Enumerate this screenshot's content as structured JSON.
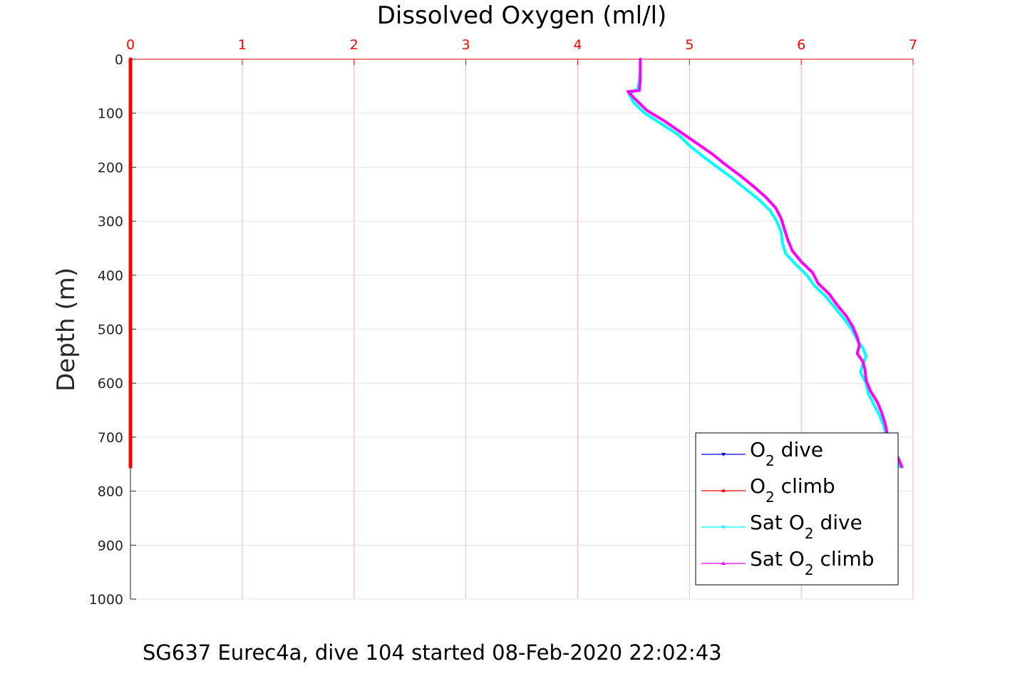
{
  "chart_data": {
    "type": "line",
    "xlabel": "Dissolved Oxygen (ml/l)",
    "ylabel": "Depth (m)",
    "xlim": [
      0,
      7
    ],
    "ylim": [
      0,
      1000
    ],
    "y_reversed": true,
    "x_axis_location": "top",
    "x_ticks": [
      "0",
      "1",
      "2",
      "3",
      "4",
      "5",
      "6",
      "7"
    ],
    "y_ticks": [
      "0",
      "100",
      "200",
      "300",
      "400",
      "500",
      "600",
      "700",
      "800",
      "900",
      "1000"
    ],
    "grid": true,
    "legend_position": "bottom-right",
    "colors": {
      "axis_x": "#ff0000",
      "axis_y": "#262626",
      "grid": "#f4a0b8",
      "o2_dive": "#0000ff",
      "o2_climb": "#ff0000",
      "sat_dive": "#00ffff",
      "sat_climb": "#ff00ff"
    },
    "legend": [
      {
        "pre": "O",
        "sub": "2",
        "post": " dive",
        "series": "o2_dive"
      },
      {
        "pre": "O",
        "sub": "2",
        "post": " climb",
        "series": "o2_climb"
      },
      {
        "pre": "Sat O",
        "sub": "2",
        "post": " dive",
        "series": "sat_dive"
      },
      {
        "pre": "Sat O",
        "sub": "2",
        "post": " climb",
        "series": "sat_climb"
      }
    ],
    "series": [
      {
        "key": "o2_dive",
        "x": [
          0,
          0
        ],
        "y": [
          0,
          755
        ]
      },
      {
        "key": "o2_climb",
        "x": [
          0,
          0
        ],
        "y": [
          0,
          755
        ]
      },
      {
        "key": "sat_dive",
        "x": [
          4.56,
          4.56,
          4.55,
          4.54,
          4.46,
          4.5,
          4.6,
          4.75,
          4.9,
          5.0,
          5.12,
          5.25,
          5.38,
          5.5,
          5.62,
          5.72,
          5.78,
          5.82,
          5.83,
          5.86,
          5.95,
          6.05,
          6.12,
          6.22,
          6.3,
          6.38,
          6.45,
          6.5,
          6.55,
          6.58,
          6.55,
          6.53,
          6.58,
          6.6,
          6.65,
          6.7,
          6.74,
          6.76,
          6.8,
          6.84,
          6.88
        ],
        "y": [
          0,
          20,
          40,
          55,
          65,
          80,
          100,
          120,
          140,
          160,
          180,
          200,
          220,
          240,
          260,
          280,
          300,
          320,
          340,
          360,
          380,
          400,
          420,
          440,
          460,
          480,
          500,
          520,
          535,
          550,
          565,
          580,
          600,
          620,
          640,
          660,
          680,
          700,
          720,
          740,
          755
        ]
      },
      {
        "key": "sat_climb",
        "x": [
          4.56,
          4.56,
          4.56,
          4.55,
          4.45,
          4.52,
          4.62,
          4.78,
          4.92,
          5.06,
          5.2,
          5.32,
          5.45,
          5.57,
          5.68,
          5.77,
          5.82,
          5.85,
          5.88,
          5.92,
          6.0,
          6.1,
          6.15,
          6.25,
          6.32,
          6.4,
          6.46,
          6.5,
          6.52,
          6.5,
          6.55,
          6.57,
          6.58,
          6.62,
          6.68,
          6.72,
          6.75,
          6.77,
          6.8,
          6.86,
          6.9
        ],
        "y": [
          0,
          20,
          40,
          58,
          60,
          75,
          95,
          115,
          135,
          155,
          175,
          195,
          215,
          235,
          255,
          275,
          295,
          315,
          335,
          355,
          375,
          395,
          415,
          435,
          455,
          475,
          495,
          515,
          530,
          545,
          560,
          575,
          595,
          615,
          635,
          655,
          675,
          695,
          715,
          735,
          755
        ]
      }
    ],
    "footer": "SG637 Eurec4a, dive 104 started 08-Feb-2020 22:02:43"
  }
}
